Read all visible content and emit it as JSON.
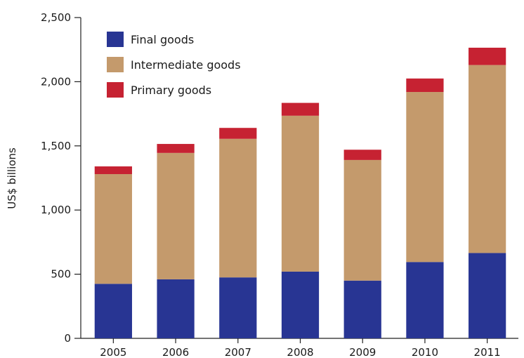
{
  "chart_data": {
    "type": "bar",
    "stacked": true,
    "categories": [
      "2005",
      "2006",
      "2007",
      "2008",
      "2009",
      "2010",
      "2011"
    ],
    "series": [
      {
        "name": "Final goods",
        "color": "#283593",
        "values": [
          425,
          460,
          475,
          520,
          450,
          595,
          665
        ]
      },
      {
        "name": "Intermediate goods",
        "color": "#c49a6c",
        "values": [
          855,
          985,
          1080,
          1215,
          940,
          1325,
          1465
        ]
      },
      {
        "name": "Primary goods",
        "color": "#c62232",
        "values": [
          60,
          70,
          85,
          100,
          80,
          105,
          135
        ]
      }
    ],
    "title": "",
    "xlabel": "",
    "ylabel": "US$ billions",
    "ylim": [
      0,
      2500
    ],
    "yticks": [
      "0",
      "500",
      "1,000",
      "1,500",
      "2,000",
      "2,500"
    ],
    "ytick_values": [
      0,
      500,
      1000,
      1500,
      2000,
      2500
    ],
    "grid": false,
    "legend_position": "top-left"
  }
}
